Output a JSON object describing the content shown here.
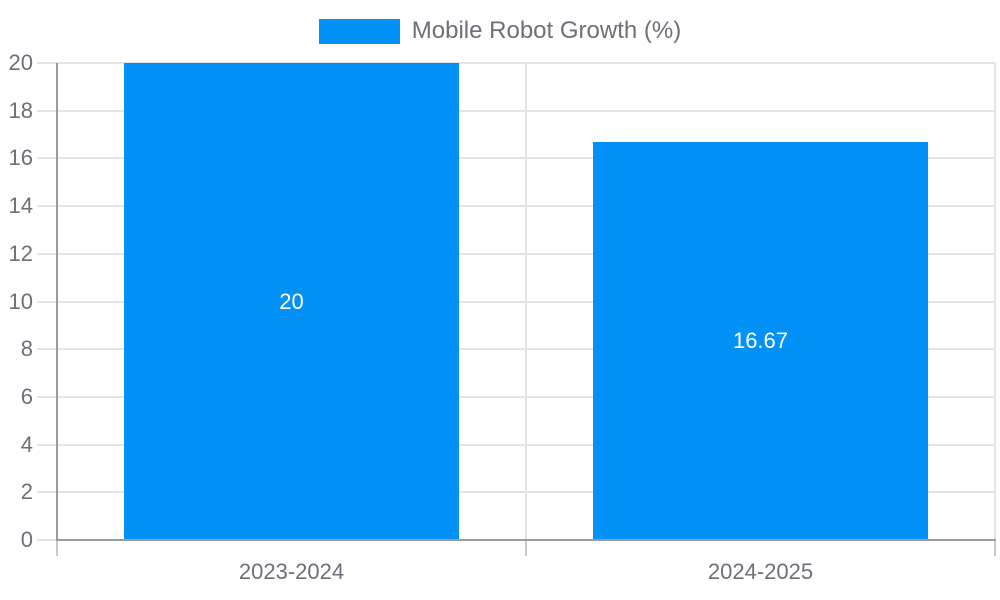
{
  "chart_data": {
    "type": "bar",
    "legend_label": "Mobile Robot Growth (%)",
    "legend_position": "top-center",
    "categories": [
      "2023-2024",
      "2024-2025"
    ],
    "series": [
      {
        "name": "Mobile Robot Growth (%)",
        "values": [
          20,
          16.67
        ]
      }
    ],
    "value_labels": [
      "20",
      "16.67"
    ],
    "ylim": [
      0,
      20
    ],
    "yticks": [
      0,
      2,
      4,
      6,
      8,
      10,
      12,
      14,
      16,
      18,
      20
    ],
    "ytick_labels": [
      "0",
      "2",
      "4",
      "6",
      "8",
      "10",
      "12",
      "14",
      "16",
      "18",
      "20"
    ],
    "grid": true,
    "colors": {
      "bar": "#0291F7",
      "grid": "#E4E4E4",
      "axis": "#9B9B9B",
      "tick": "#C8C8C8",
      "axis_label": "#6E7079",
      "legend_text": "#6E7079",
      "value_label": "#FFFFFF",
      "background": "#FFFFFF"
    }
  }
}
